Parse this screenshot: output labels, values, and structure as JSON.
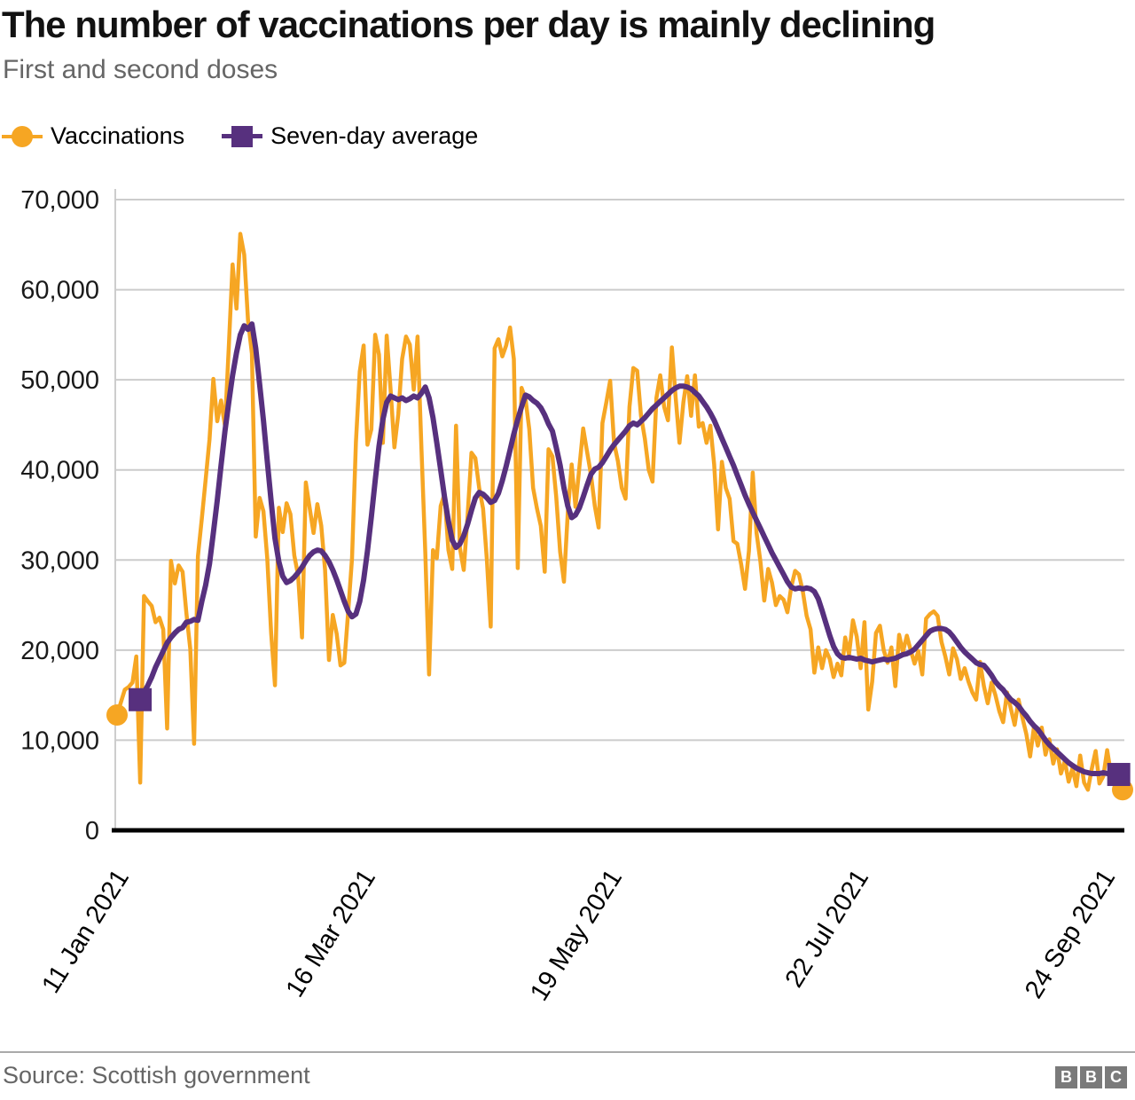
{
  "header": {
    "title": "The number of vaccinations per day is mainly declining",
    "subtitle": "First and second doses"
  },
  "legend": {
    "items": [
      {
        "label": "Vaccinations",
        "marker": "circle",
        "color": "#F6A623"
      },
      {
        "label": "Seven-day average",
        "marker": "square",
        "color": "#57307E"
      }
    ],
    "position": "top-left"
  },
  "footer": {
    "source": "Source: Scottish government",
    "logo_letters": {
      "b1": "B",
      "b2": "B",
      "b3": "C"
    }
  },
  "chart_data": {
    "type": "line",
    "title": "The number of vaccinations per day is mainly declining",
    "subtitle": "First and second doses",
    "grid": true,
    "legend_position": "top-left",
    "y_axis": {
      "min": 0,
      "max": 70000,
      "tick_step": 10000,
      "tick_labels": [
        "0",
        "10,000",
        "20,000",
        "30,000",
        "40,000",
        "50,000",
        "60,000",
        "70,000"
      ]
    },
    "x_axis": {
      "tick_labels": [
        "11 Jan 2021",
        "16 Mar 2021",
        "19 May 2021",
        "22 Jul 2021",
        "24 Sep 2021"
      ],
      "tick_days": [
        0,
        64,
        128,
        192,
        256
      ],
      "total_days": 262,
      "start_date": "11 Jan 2021",
      "end_date": "29 Sep 2021"
    },
    "values_unit": "thousands of vaccinations per day",
    "series": [
      {
        "name": "Vaccinations",
        "color": "#F6A623",
        "start_day": 0,
        "end_markers": true,
        "values_thousands": [
          12.8,
          14.2,
          15.6,
          15.9,
          16.4,
          19.3,
          5.3,
          26.0,
          25.4,
          24.9,
          23.1,
          23.6,
          22.3,
          11.3,
          29.9,
          27.4,
          29.4,
          28.7,
          24.1,
          20.1,
          9.6,
          30.4,
          34.6,
          38.9,
          43.4,
          50.1,
          45.4,
          47.7,
          44.9,
          53.6,
          62.8,
          57.9,
          66.2,
          63.9,
          56.6,
          52.9,
          32.6,
          36.9,
          35.4,
          30.2,
          21.9,
          16.1,
          35.8,
          33.1,
          36.3,
          35.1,
          30.5,
          28.3,
          21.4,
          38.6,
          35.8,
          33.0,
          36.2,
          33.8,
          28.9,
          18.9,
          23.9,
          21.8,
          18.3,
          18.6,
          24.3,
          30.2,
          43.1,
          50.9,
          53.8,
          42.8,
          44.5,
          55.0,
          52.8,
          43.0,
          54.9,
          48.9,
          42.5,
          46.2,
          52.3,
          54.8,
          53.9,
          48.9,
          54.8,
          42.6,
          30.9,
          17.3,
          31.1,
          30.2,
          36.0,
          37.3,
          31.1,
          29.0,
          44.9,
          31.3,
          28.9,
          35.0,
          41.9,
          41.3,
          38.0,
          35.7,
          30.0,
          22.6,
          53.5,
          54.5,
          52.6,
          53.8,
          55.8,
          52.3,
          29.1,
          49.1,
          47.9,
          44.5,
          38.0,
          35.7,
          33.8,
          28.7,
          42.3,
          41.5,
          37.0,
          30.9,
          27.6,
          35.2,
          40.6,
          35.9,
          40.3,
          44.6,
          42.0,
          39.5,
          36.0,
          33.6,
          45.2,
          47.5,
          49.9,
          43.0,
          41.0,
          38.0,
          36.8,
          47.0,
          51.3,
          51.0,
          46.0,
          43.5,
          40.0,
          38.7,
          48.0,
          50.5,
          47.0,
          45.5,
          53.6,
          48.0,
          43.0,
          47.5,
          50.4,
          46.0,
          50.5,
          44.8,
          45.2,
          43.0,
          44.9,
          40.6,
          33.4,
          40.9,
          38.0,
          36.8,
          32.1,
          31.8,
          29.5,
          26.8,
          31.0,
          39.7,
          33.0,
          29.8,
          25.5,
          29.0,
          27.5,
          25.0,
          26.0,
          25.6,
          24.2,
          27.0,
          28.8,
          28.4,
          26.5,
          23.8,
          22.3,
          17.5,
          20.3,
          18.0,
          20.0,
          19.0,
          17.0,
          18.5,
          17.2,
          21.4,
          19.5,
          23.3,
          21.5,
          18.0,
          23.1,
          13.4,
          16.5,
          21.9,
          22.7,
          20.0,
          18.6,
          20.3,
          16.0,
          21.7,
          19.8,
          21.6,
          20.0,
          18.5,
          19.9,
          17.3,
          23.5,
          24.0,
          24.3,
          23.8,
          20.9,
          19.3,
          17.3,
          20.2,
          19.0,
          16.8,
          18.0,
          16.5,
          15.3,
          14.5,
          18.7,
          16.0,
          14.1,
          16.4,
          15.0,
          13.2,
          12.0,
          15.3,
          13.5,
          11.7,
          14.5,
          12.5,
          10.7,
          8.2,
          11.5,
          9.4,
          11.4,
          8.4,
          10.1,
          7.4,
          9.0,
          6.3,
          7.7,
          5.4,
          6.9,
          4.9,
          8.3,
          5.3,
          4.5,
          6.8,
          8.8,
          5.2,
          6.0,
          8.9,
          6.2,
          5.1,
          4.8,
          4.5
        ]
      },
      {
        "name": "Seven-day average",
        "color": "#57307E",
        "start_day": 6,
        "end_markers": true,
        "values_thousands": [
          14.5,
          15.3,
          16.1,
          17.0,
          18.1,
          19.0,
          19.9,
          20.8,
          21.4,
          21.9,
          22.3,
          22.5,
          23.1,
          23.2,
          23.4,
          23.3,
          25.4,
          27.2,
          29.6,
          33.0,
          36.6,
          40.5,
          44.3,
          47.5,
          50.5,
          53.0,
          55.0,
          56.0,
          55.6,
          56.2,
          53.5,
          49.5,
          45.5,
          41.0,
          36.5,
          32.4,
          29.8,
          28.2,
          27.5,
          27.7,
          28.1,
          28.6,
          29.2,
          29.9,
          30.5,
          30.9,
          31.1,
          31.0,
          30.5,
          29.8,
          28.9,
          27.8,
          26.6,
          25.4,
          24.3,
          23.7,
          24.0,
          25.4,
          27.8,
          31.0,
          34.8,
          38.8,
          42.6,
          45.6,
          47.5,
          48.2,
          48.0,
          47.8,
          48.0,
          47.7,
          47.9,
          48.2,
          48.0,
          48.5,
          49.2,
          48.0,
          45.8,
          43.0,
          40.0,
          37.0,
          34.3,
          32.2,
          31.4,
          31.8,
          32.7,
          34.0,
          35.5,
          36.9,
          37.5,
          37.3,
          36.9,
          36.4,
          36.6,
          37.4,
          38.8,
          40.4,
          42.2,
          44.0,
          45.6,
          47.0,
          48.3,
          48.1,
          47.7,
          47.4,
          46.9,
          46.1,
          45.1,
          44.3,
          42.5,
          40.5,
          38.0,
          36.0,
          34.7,
          35.0,
          35.8,
          37.0,
          38.3,
          39.5,
          40.1,
          40.3,
          40.8,
          41.5,
          42.2,
          42.8,
          43.3,
          43.8,
          44.3,
          44.9,
          45.2,
          45.0,
          45.4,
          45.8,
          46.3,
          46.8,
          47.2,
          47.6,
          48.0,
          48.4,
          48.8,
          49.1,
          49.3,
          49.3,
          49.2,
          49.0,
          48.6,
          48.2,
          47.6,
          47.0,
          46.3,
          45.5,
          44.5,
          43.5,
          42.5,
          41.5,
          40.5,
          39.4,
          38.3,
          37.2,
          36.2,
          35.3,
          34.4,
          33.5,
          32.6,
          31.7,
          30.8,
          30.0,
          29.2,
          28.4,
          27.6,
          27.0,
          26.8,
          26.9,
          26.8,
          26.9,
          26.8,
          26.5,
          25.7,
          24.4,
          23.0,
          21.6,
          20.4,
          19.6,
          19.2,
          19.1,
          19.2,
          19.1,
          19.0,
          19.1,
          18.9,
          18.8,
          18.7,
          18.8,
          18.9,
          19.0,
          18.9,
          19.0,
          19.1,
          19.3,
          19.5,
          19.6,
          19.8,
          20.1,
          20.6,
          21.1,
          21.6,
          22.1,
          22.3,
          22.4,
          22.4,
          22.3,
          22.0,
          21.5,
          20.9,
          20.3,
          19.8,
          19.4,
          19.0,
          18.6,
          18.4,
          18.3,
          17.8,
          17.2,
          16.5,
          16.0,
          15.6,
          15.0,
          14.5,
          14.2,
          13.8,
          13.2,
          12.7,
          12.1,
          11.6,
          11.2,
          10.6,
          10.0,
          9.5,
          9.1,
          8.7,
          8.3,
          7.9,
          7.5,
          7.2,
          6.9,
          6.7,
          6.5,
          6.4,
          6.3,
          6.3,
          6.3,
          6.4,
          6.3,
          6.2,
          6.1,
          6.2
        ]
      }
    ]
  }
}
